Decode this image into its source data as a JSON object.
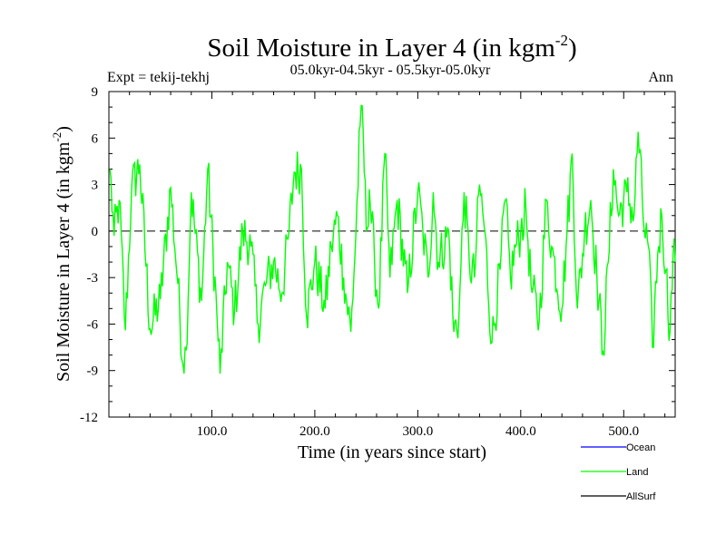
{
  "chart_data": {
    "type": "line",
    "title": "Soil Moisture in Layer 4 (in kgm",
    "title_superscript": "-2",
    "title_close": ")",
    "subtitle": "05.0kyr-04.5kyr - 05.5kyr-05.0kyr",
    "expt_label": "Expt = tekij-tekhj",
    "season_label": "Ann",
    "xlabel": "Time (in years since start)",
    "ylabel": "Soil Moisture in Layer 4 (in kgm",
    "ylabel_superscript": "-2",
    "ylabel_close": ")",
    "xlim": [
      0,
      550
    ],
    "ylim": [
      -12,
      9
    ],
    "x_ticks": [
      100,
      200,
      300,
      400,
      500
    ],
    "x_tick_labels": [
      "100.0",
      "200.0",
      "300.0",
      "400.0",
      "500.0"
    ],
    "y_ticks": [
      -12,
      -9,
      -6,
      -3,
      0,
      3,
      6,
      9
    ],
    "y_tick_labels": [
      "-12",
      "-9",
      "-6",
      "-3",
      "0",
      "3",
      "6",
      "9"
    ],
    "zero_line": "dashed",
    "series": [
      {
        "name": "Ocean",
        "color": "#0000ff",
        "values": []
      },
      {
        "name": "Land",
        "color": "#00ff00",
        "note": "annual values, approximate reconstruction of visible trace",
        "key_points": [
          [
            1,
            4.0
          ],
          [
            5,
            -0.3
          ],
          [
            10,
            2.0
          ],
          [
            16,
            -6.4
          ],
          [
            22,
            2.7
          ],
          [
            30,
            4.3
          ],
          [
            40,
            -6.3
          ],
          [
            50,
            -4.4
          ],
          [
            60,
            2.8
          ],
          [
            67,
            -3.4
          ],
          [
            72,
            -8.6
          ],
          [
            75,
            -7.7
          ],
          [
            80,
            2.5
          ],
          [
            90,
            -4.5
          ],
          [
            96,
            4.0
          ],
          [
            105,
            -5.5
          ],
          [
            108,
            -9.2
          ],
          [
            115,
            -2.0
          ],
          [
            122,
            -5.2
          ],
          [
            130,
            0.0
          ],
          [
            138,
            -1.0
          ],
          [
            145,
            -6.0
          ],
          [
            152,
            -3.5
          ],
          [
            160,
            -2.0
          ],
          [
            168,
            -4.0
          ],
          [
            175,
            0.0
          ],
          [
            180,
            3.8
          ],
          [
            187,
            4.0
          ],
          [
            192,
            -5.5
          ],
          [
            200,
            -2.0
          ],
          [
            210,
            -5.0
          ],
          [
            216,
            -1.0
          ],
          [
            222,
            1.0
          ],
          [
            228,
            -3.0
          ],
          [
            235,
            -6.5
          ],
          [
            240,
            0.0
          ],
          [
            244,
            6.8
          ],
          [
            246,
            8.1
          ],
          [
            250,
            0.0
          ],
          [
            253,
            2.7
          ],
          [
            258,
            -2.0
          ],
          [
            262,
            -5.0
          ],
          [
            268,
            5.0
          ],
          [
            273,
            -3.0
          ],
          [
            280,
            2.0
          ],
          [
            290,
            -4.0
          ],
          [
            300,
            2.5
          ],
          [
            305,
            0.0
          ],
          [
            310,
            -3.0
          ],
          [
            315,
            2.5
          ],
          [
            320,
            -2.0
          ],
          [
            330,
            0.0
          ],
          [
            335,
            -6.5
          ],
          [
            340,
            -5.5
          ],
          [
            345,
            2.5
          ],
          [
            350,
            -2.0
          ],
          [
            355,
            -3.0
          ],
          [
            360,
            3.0
          ],
          [
            365,
            0.0
          ],
          [
            372,
            -7.2
          ],
          [
            380,
            -2.5
          ],
          [
            385,
            2.0
          ],
          [
            390,
            -3.0
          ],
          [
            395,
            -1.0
          ],
          [
            400,
            0.0
          ],
          [
            405,
            1.5
          ],
          [
            410,
            -3.5
          ],
          [
            418,
            -5.8
          ],
          [
            425,
            2.0
          ],
          [
            430,
            -1.0
          ],
          [
            440,
            -5.0
          ],
          [
            445,
            0.0
          ],
          [
            450,
            5.0
          ],
          [
            455,
            -5.0
          ],
          [
            462,
            0.0
          ],
          [
            468,
            2.0
          ],
          [
            474,
            -3.0
          ],
          [
            480,
            -7.8
          ],
          [
            485,
            -2.0
          ],
          [
            490,
            4.0
          ],
          [
            495,
            1.0
          ],
          [
            503,
            2.5
          ],
          [
            510,
            1.0
          ],
          [
            514,
            6.4
          ],
          [
            520,
            0.0
          ],
          [
            524,
            -1.0
          ],
          [
            528,
            -7.5
          ],
          [
            533,
            -1.5
          ],
          [
            537,
            1.0
          ],
          [
            541,
            -2.5
          ],
          [
            545,
            -6.5
          ],
          [
            548,
            -1.5
          ],
          [
            550,
            -2.0
          ]
        ]
      },
      {
        "name": "AllSurf",
        "color": "#000000",
        "values": []
      }
    ],
    "legend": {
      "placement": "bottom-right",
      "entries": [
        "Ocean",
        "Land",
        "AllSurf"
      ]
    }
  }
}
